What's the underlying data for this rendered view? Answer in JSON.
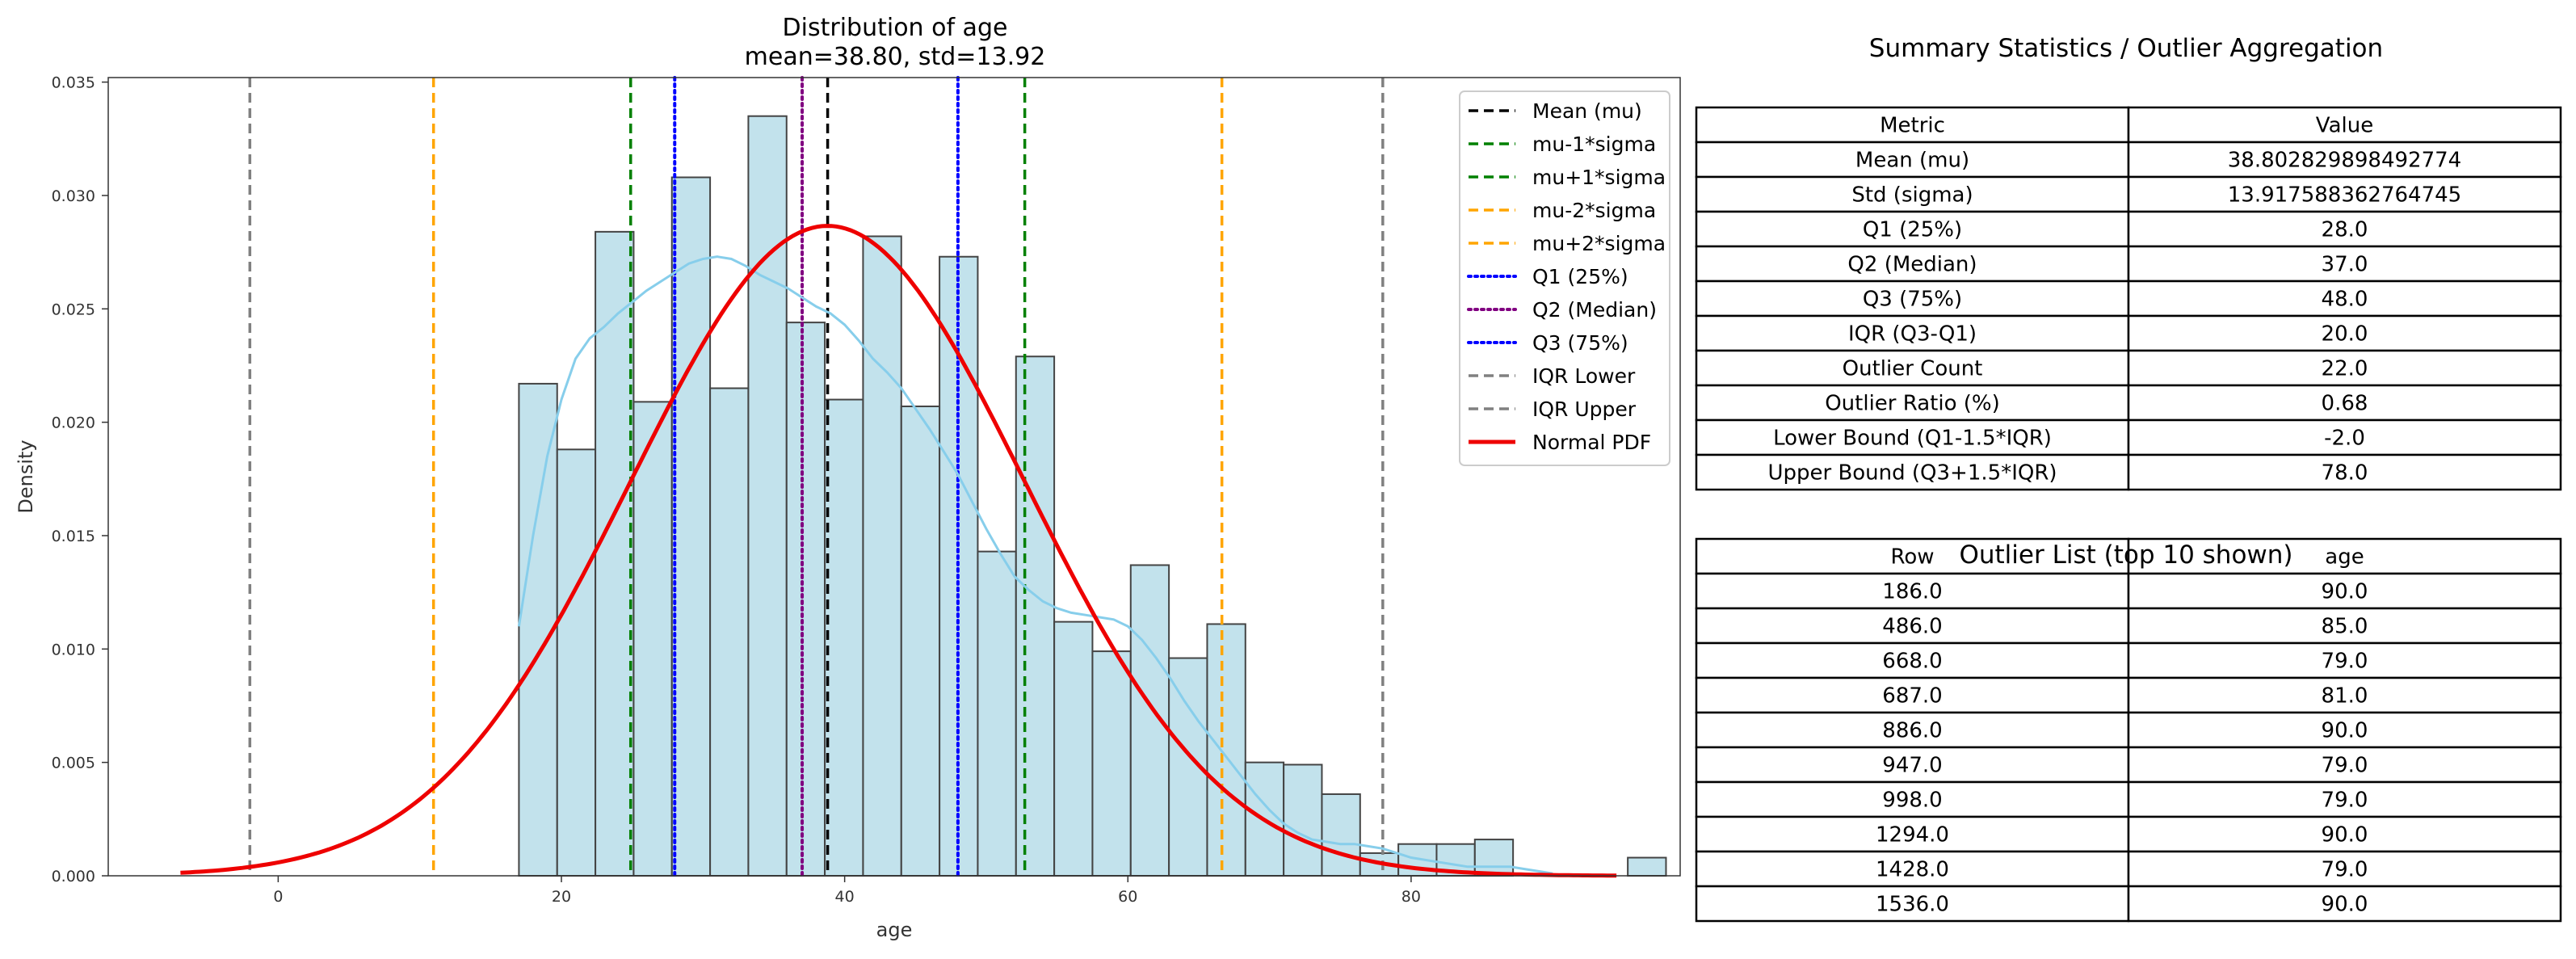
{
  "chart_data": {
    "type": "bar",
    "title": "Distribution of age",
    "subtitle": "mean=38.80, std=13.92",
    "xlabel": "age",
    "ylabel": "Density",
    "xlim": [
      -12,
      99
    ],
    "ylim": [
      0,
      0.0352
    ],
    "x_ticks": [
      0,
      20,
      40,
      60,
      80
    ],
    "y_ticks": [
      0.0,
      0.005,
      0.01,
      0.015,
      0.02,
      0.025,
      0.03,
      0.035
    ],
    "y_tick_labels": [
      "0.000",
      "0.005",
      "0.010",
      "0.015",
      "0.020",
      "0.025",
      "0.030",
      "0.035"
    ],
    "grid": false,
    "legend_position": "top-right",
    "histogram": {
      "bin_start": 17,
      "bin_width": 2.7,
      "densities": [
        0.0217,
        0.0188,
        0.0284,
        0.0209,
        0.0308,
        0.0215,
        0.0335,
        0.0244,
        0.021,
        0.0282,
        0.0207,
        0.0273,
        0.0143,
        0.0229,
        0.0112,
        0.0099,
        0.0137,
        0.0096,
        0.0111,
        0.005,
        0.0049,
        0.0036,
        0.001,
        0.0014,
        0.0014,
        0.0016,
        0.0,
        0.0,
        0.0,
        0.0008
      ],
      "fill": "#add8e6",
      "edge": "#444444"
    },
    "kde": {
      "color": "#87ceeb",
      "x": [
        17,
        18,
        19,
        20,
        21,
        22,
        23,
        24,
        25,
        26,
        27,
        28,
        29,
        30,
        31,
        32,
        33,
        34,
        35,
        36,
        37,
        38,
        39,
        40,
        41,
        42,
        43,
        44,
        45,
        46,
        47,
        48,
        49,
        50,
        51,
        52,
        53,
        54,
        55,
        56,
        57,
        58,
        59,
        60,
        61,
        62,
        63,
        64,
        65,
        66,
        67,
        68,
        69,
        70,
        71,
        72,
        73,
        74,
        75,
        76,
        77,
        78,
        79,
        80,
        81,
        82,
        83,
        84,
        85,
        86,
        87,
        88,
        89,
        90
      ],
      "y": [
        0.011,
        0.015,
        0.0185,
        0.021,
        0.0228,
        0.0237,
        0.0242,
        0.0248,
        0.0253,
        0.0258,
        0.0262,
        0.0266,
        0.027,
        0.0272,
        0.0273,
        0.0272,
        0.0269,
        0.0265,
        0.0262,
        0.0259,
        0.0255,
        0.0251,
        0.0248,
        0.0243,
        0.0236,
        0.0228,
        0.0222,
        0.0215,
        0.0206,
        0.0197,
        0.0187,
        0.0177,
        0.0165,
        0.0153,
        0.0142,
        0.0132,
        0.0126,
        0.0121,
        0.0118,
        0.0116,
        0.0115,
        0.0114,
        0.0113,
        0.011,
        0.0104,
        0.0096,
        0.0087,
        0.0077,
        0.0068,
        0.006,
        0.0052,
        0.0044,
        0.0036,
        0.0029,
        0.0023,
        0.0019,
        0.0016,
        0.0015,
        0.0014,
        0.0014,
        0.0013,
        0.0012,
        0.001,
        0.0008,
        0.0007,
        0.0006,
        0.0005,
        0.0004,
        0.0004,
        0.0004,
        0.0004,
        0.0003,
        0.0002,
        0.0001
      ]
    },
    "normal_pdf": {
      "mu": 38.8,
      "sigma": 13.92,
      "x_range": [
        -6.9,
        94.5
      ],
      "color": "#ee0000"
    },
    "vlines": [
      {
        "label": "Mean (mu)",
        "x": 38.8,
        "color": "#000000",
        "style": "dashed"
      },
      {
        "label": "mu-1*sigma",
        "x": 24.89,
        "color": "#008000",
        "style": "dashed"
      },
      {
        "label": "mu+1*sigma",
        "x": 52.72,
        "color": "#008000",
        "style": "dashed"
      },
      {
        "label": "mu-2*sigma",
        "x": 10.97,
        "color": "#ffa500",
        "style": "dashed"
      },
      {
        "label": "mu+2*sigma",
        "x": 66.64,
        "color": "#ffa500",
        "style": "dashed"
      },
      {
        "label": "Q1 (25%)",
        "x": 28.0,
        "color": "#0000ff",
        "style": "dotted"
      },
      {
        "label": "Q2 (Median)",
        "x": 37.0,
        "color": "#800080",
        "style": "dotted"
      },
      {
        "label": "Q3 (75%)",
        "x": 48.0,
        "color": "#0000ff",
        "style": "dotted"
      },
      {
        "label": "IQR Lower",
        "x": -2.0,
        "color": "#808080",
        "style": "dashed"
      },
      {
        "label": "IQR Upper",
        "x": 78.0,
        "color": "#808080",
        "style": "dashed"
      }
    ],
    "legend": [
      {
        "label": "Mean (mu)",
        "color": "#000000",
        "style": "dashed"
      },
      {
        "label": "mu-1*sigma",
        "color": "#008000",
        "style": "dashed"
      },
      {
        "label": "mu+1*sigma",
        "color": "#008000",
        "style": "dashed"
      },
      {
        "label": "mu-2*sigma",
        "color": "#ffa500",
        "style": "dashed"
      },
      {
        "label": "mu+2*sigma",
        "color": "#ffa500",
        "style": "dashed"
      },
      {
        "label": "Q1 (25%)",
        "color": "#0000ff",
        "style": "dotted"
      },
      {
        "label": "Q2 (Median)",
        "color": "#800080",
        "style": "dotted"
      },
      {
        "label": "Q3 (75%)",
        "color": "#0000ff",
        "style": "dotted"
      },
      {
        "label": "IQR Lower",
        "color": "#808080",
        "style": "dashed"
      },
      {
        "label": "IQR Upper",
        "color": "#808080",
        "style": "dashed"
      },
      {
        "label": "Normal PDF",
        "color": "#ee0000",
        "style": "solid"
      }
    ]
  },
  "summary_table": {
    "title": "Summary Statistics / Outlier Aggregation",
    "headers": [
      "Metric",
      "Value"
    ],
    "rows": [
      [
        "Mean (mu)",
        "38.802829898492774"
      ],
      [
        "Std (sigma)",
        "13.917588362764745"
      ],
      [
        "Q1 (25%)",
        "28.0"
      ],
      [
        "Q2 (Median)",
        "37.0"
      ],
      [
        "Q3 (75%)",
        "48.0"
      ],
      [
        "IQR (Q3-Q1)",
        "20.0"
      ],
      [
        "Outlier Count",
        "22.0"
      ],
      [
        "Outlier Ratio (%)",
        "0.68"
      ],
      [
        "Lower Bound (Q1-1.5*IQR)",
        "-2.0"
      ],
      [
        "Upper Bound (Q3+1.5*IQR)",
        "78.0"
      ]
    ]
  },
  "outlier_table": {
    "title": "Outlier List (top 10 shown)",
    "headers": [
      "Row",
      "age"
    ],
    "rows": [
      [
        "186.0",
        "90.0"
      ],
      [
        "486.0",
        "85.0"
      ],
      [
        "668.0",
        "79.0"
      ],
      [
        "687.0",
        "81.0"
      ],
      [
        "886.0",
        "90.0"
      ],
      [
        "947.0",
        "79.0"
      ],
      [
        "998.0",
        "79.0"
      ],
      [
        "1294.0",
        "90.0"
      ],
      [
        "1428.0",
        "79.0"
      ],
      [
        "1536.0",
        "90.0"
      ]
    ]
  }
}
